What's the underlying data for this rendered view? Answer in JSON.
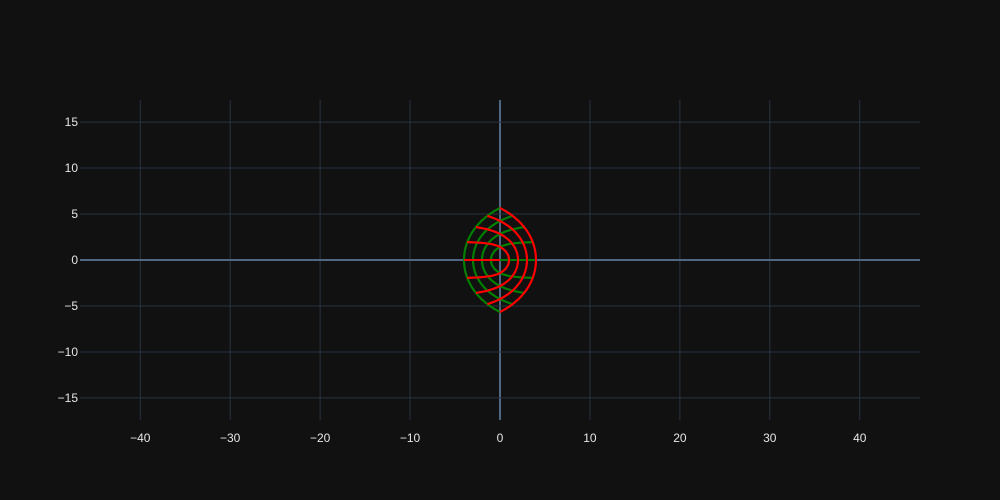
{
  "chart_data": {
    "type": "line",
    "title": "",
    "xlabel": "",
    "ylabel": "",
    "xlim": [
      -46.7,
      46.7
    ],
    "ylim": [
      -17.4,
      17.4
    ],
    "x_ticks": [
      -40,
      -30,
      -20,
      -10,
      0,
      10,
      20,
      30,
      40
    ],
    "x_tick_labels": [
      "−40",
      "−30",
      "−20",
      "−10",
      "0",
      "10",
      "20",
      "30",
      "40"
    ],
    "y_ticks": [
      -15,
      -10,
      -5,
      0,
      5,
      10,
      15
    ],
    "y_tick_labels": [
      "−15",
      "−10",
      "−5",
      "0",
      "5",
      "10",
      "15"
    ],
    "grid": true,
    "legend": "none",
    "mapping": "conformal map w = z^2 / |z| of a square grid z = x + iy, x,y in [-4, 4]",
    "grid_extent": 4,
    "grid_lines": [
      -4,
      -3,
      -2,
      -1,
      0,
      1,
      2,
      3,
      4
    ],
    "series": [
      {
        "family": "constant-x lines",
        "color": "#ff0000"
      },
      {
        "family": "constant-y lines",
        "color": "#008000"
      }
    ]
  },
  "colors": {
    "background": "#111111",
    "grid": "#283442",
    "zeroline": "#506784",
    "tick_text": "#e6e6e6"
  }
}
